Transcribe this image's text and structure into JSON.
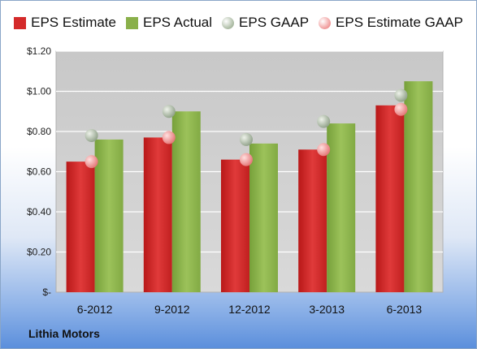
{
  "company": "Lithia Motors",
  "legend": [
    {
      "label": "EPS Estimate",
      "color": "#d42a2a",
      "shape": "square"
    },
    {
      "label": "EPS Actual",
      "color": "#8ab04a",
      "shape": "square"
    },
    {
      "label": "EPS GAAP",
      "color": "#a9b9a0",
      "shape": "circle"
    },
    {
      "label": "EPS Estimate GAAP",
      "color": "#f09898",
      "shape": "circle"
    }
  ],
  "chart_data": {
    "type": "bar",
    "categories": [
      "6-2012",
      "9-2012",
      "12-2012",
      "3-2013",
      "6-2013"
    ],
    "series": [
      {
        "name": "EPS Estimate",
        "kind": "bar",
        "values": [
          0.65,
          0.77,
          0.66,
          0.71,
          0.93
        ],
        "color": "#d42a2a"
      },
      {
        "name": "EPS Actual",
        "kind": "bar",
        "values": [
          0.76,
          0.9,
          0.74,
          0.84,
          1.05
        ],
        "color": "#8ab04a"
      },
      {
        "name": "EPS GAAP",
        "kind": "marker",
        "values": [
          0.78,
          0.9,
          0.76,
          0.85,
          0.98
        ],
        "color": "#a9b9a0"
      },
      {
        "name": "EPS Estimate GAAP",
        "kind": "marker",
        "values": [
          0.65,
          0.77,
          0.66,
          0.71,
          0.91
        ],
        "color": "#f09898"
      }
    ],
    "ylim": [
      0,
      1.2
    ],
    "yticks": [
      0,
      0.2,
      0.4,
      0.6,
      0.8,
      1.0,
      1.2
    ],
    "ytick_labels": [
      "$-",
      "$0.20",
      "$0.40",
      "$0.60",
      "$0.80",
      "$1.00",
      "$1.20"
    ],
    "grid": true,
    "legend_position": "top"
  }
}
